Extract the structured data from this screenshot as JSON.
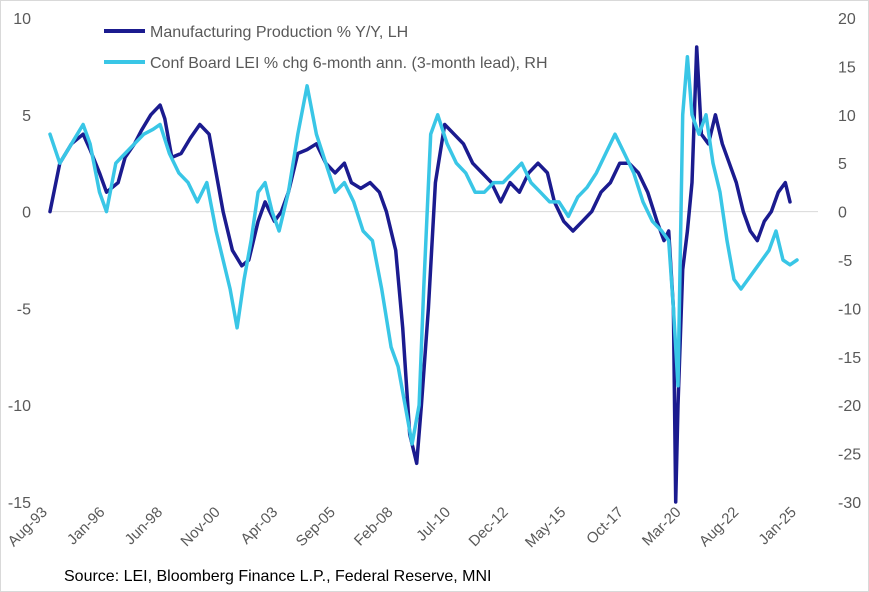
{
  "colors": {
    "lh": "#1b1b8f",
    "rh": "#39c6e6",
    "axis_text": "#595959",
    "zero_line": "#d9d9d9"
  },
  "source": "Source: LEI, Bloomberg Finance L.P., Federal Reserve, MNI",
  "chart_data": {
    "type": "line",
    "title": "",
    "legend_position": "top-center",
    "x_ticks": [
      "Aug-93",
      "Jan-96",
      "Jun-98",
      "Nov-00",
      "Apr-03",
      "Sep-05",
      "Feb-08",
      "Jul-10",
      "Dec-12",
      "May-15",
      "Oct-17",
      "Mar-20",
      "Aug-22",
      "Jan-25"
    ],
    "x_range": [
      1993.58,
      2026.5
    ],
    "left_axis": {
      "range": [
        -15,
        10
      ],
      "ticks": [
        10,
        5,
        0,
        -5,
        -10,
        -15
      ]
    },
    "right_axis": {
      "range": [
        -30,
        20
      ],
      "ticks": [
        20,
        15,
        10,
        5,
        0,
        -5,
        -10,
        -15,
        -20,
        -25,
        -30
      ]
    },
    "series": [
      {
        "name": "Manufacturing Production % Y/Y, LH",
        "axis": "left",
        "color": "#1b1b8f",
        "x": [
          1993.58,
          1994.0,
          1994.5,
          1995.0,
          1995.3,
          1995.7,
          1996.0,
          1996.5,
          1996.8,
          1997.2,
          1997.5,
          1997.9,
          1998.3,
          1998.5,
          1998.8,
          1999.2,
          1999.6,
          2000.0,
          2000.4,
          2000.7,
          2001.0,
          2001.4,
          2001.8,
          2002.1,
          2002.5,
          2002.8,
          2003.2,
          2003.5,
          2003.8,
          2004.2,
          2004.6,
          2005.0,
          2005.4,
          2005.8,
          2006.2,
          2006.5,
          2006.9,
          2007.3,
          2007.7,
          2008.0,
          2008.4,
          2008.7,
          2009.0,
          2009.3,
          2009.5,
          2009.8,
          2010.1,
          2010.5,
          2010.9,
          2011.3,
          2011.7,
          2012.1,
          2012.5,
          2012.9,
          2013.3,
          2013.7,
          2014.1,
          2014.5,
          2014.9,
          2015.2,
          2015.6,
          2016.0,
          2016.4,
          2016.8,
          2017.2,
          2017.6,
          2018.0,
          2018.4,
          2018.8,
          2019.2,
          2019.6,
          2019.9,
          2020.1,
          2020.3,
          2020.4,
          2020.5,
          2020.7,
          2020.9,
          2021.1,
          2021.3,
          2021.5,
          2021.8,
          2022.1,
          2022.4,
          2022.7,
          2023.0,
          2023.3,
          2023.6,
          2023.9,
          2024.2,
          2024.5,
          2024.8,
          2025.1,
          2025.3
        ],
        "y": [
          0.0,
          2.5,
          3.5,
          4.0,
          3.2,
          2.0,
          1.0,
          1.5,
          2.8,
          3.5,
          4.2,
          5.0,
          5.5,
          4.8,
          2.8,
          3.0,
          3.8,
          4.5,
          4.0,
          2.0,
          0.0,
          -2.0,
          -2.8,
          -2.5,
          -0.5,
          0.5,
          -0.5,
          0.0,
          1.0,
          3.0,
          3.2,
          3.5,
          2.5,
          2.0,
          2.5,
          1.5,
          1.2,
          1.5,
          1.0,
          0.0,
          -2.0,
          -6.0,
          -11.5,
          -13.0,
          -10.0,
          -5.0,
          1.5,
          4.5,
          4.0,
          3.5,
          2.5,
          2.0,
          1.5,
          0.5,
          1.5,
          1.0,
          2.0,
          2.5,
          2.0,
          0.5,
          -0.5,
          -1.0,
          -0.5,
          0.0,
          1.0,
          1.5,
          2.5,
          2.5,
          2.0,
          1.0,
          -0.5,
          -1.5,
          -1.0,
          -5.0,
          -15.0,
          -10.0,
          -3.0,
          -1.0,
          1.5,
          8.5,
          4.0,
          3.5,
          5.0,
          3.5,
          2.5,
          1.5,
          0.0,
          -1.0,
          -1.5,
          -0.5,
          0.0,
          1.0,
          1.5,
          0.5
        ]
      },
      {
        "name": "Conf Board LEI % chg 6-month ann. (3-month lead), RH",
        "axis": "right",
        "color": "#39c6e6",
        "x": [
          1993.58,
          1994.0,
          1994.5,
          1995.0,
          1995.3,
          1995.7,
          1996.0,
          1996.4,
          1996.8,
          1997.2,
          1997.6,
          1998.0,
          1998.3,
          1998.7,
          1999.1,
          1999.5,
          1999.9,
          2000.3,
          2000.7,
          2001.0,
          2001.3,
          2001.6,
          2001.9,
          2002.2,
          2002.5,
          2002.8,
          2003.1,
          2003.4,
          2003.8,
          2004.2,
          2004.6,
          2005.0,
          2005.4,
          2005.8,
          2006.2,
          2006.6,
          2007.0,
          2007.4,
          2007.8,
          2008.2,
          2008.5,
          2008.8,
          2009.1,
          2009.4,
          2009.6,
          2009.9,
          2010.2,
          2010.6,
          2011.0,
          2011.4,
          2011.8,
          2012.2,
          2012.6,
          2013.0,
          2013.4,
          2013.8,
          2014.2,
          2014.6,
          2015.0,
          2015.4,
          2015.8,
          2016.2,
          2016.6,
          2017.0,
          2017.4,
          2017.8,
          2018.2,
          2018.6,
          2019.0,
          2019.4,
          2019.8,
          2020.1,
          2020.3,
          2020.5,
          2020.7,
          2020.9,
          2021.1,
          2021.4,
          2021.7,
          2022.0,
          2022.3,
          2022.6,
          2022.9,
          2023.2,
          2023.5,
          2023.8,
          2024.1,
          2024.4,
          2024.7,
          2025.0,
          2025.3,
          2025.6
        ],
        "y": [
          8.0,
          5.0,
          7.0,
          9.0,
          7.0,
          2.0,
          0.0,
          5.0,
          6.0,
          7.0,
          8.0,
          8.5,
          9.0,
          6.0,
          4.0,
          3.0,
          1.0,
          3.0,
          -2.0,
          -5.0,
          -8.0,
          -12.0,
          -7.0,
          -3.0,
          2.0,
          3.0,
          0.0,
          -2.0,
          2.0,
          8.0,
          13.0,
          8.0,
          5.0,
          2.0,
          3.0,
          1.0,
          -2.0,
          -3.0,
          -8.0,
          -14.0,
          -16.0,
          -20.0,
          -24.0,
          -20.0,
          -8.0,
          8.0,
          10.0,
          7.0,
          5.0,
          4.0,
          2.0,
          2.0,
          3.0,
          3.0,
          4.0,
          5.0,
          3.0,
          2.0,
          1.0,
          1.0,
          -0.5,
          1.5,
          2.5,
          4.0,
          6.0,
          8.0,
          6.0,
          4.0,
          1.0,
          -1.0,
          -2.0,
          -3.0,
          -10.0,
          -18.0,
          10.0,
          16.0,
          10.0,
          8.0,
          10.0,
          5.0,
          2.0,
          -3.0,
          -7.0,
          -8.0,
          -7.0,
          -6.0,
          -5.0,
          -4.0,
          -2.0,
          -5.0,
          -5.5,
          -5.0
        ]
      }
    ]
  }
}
